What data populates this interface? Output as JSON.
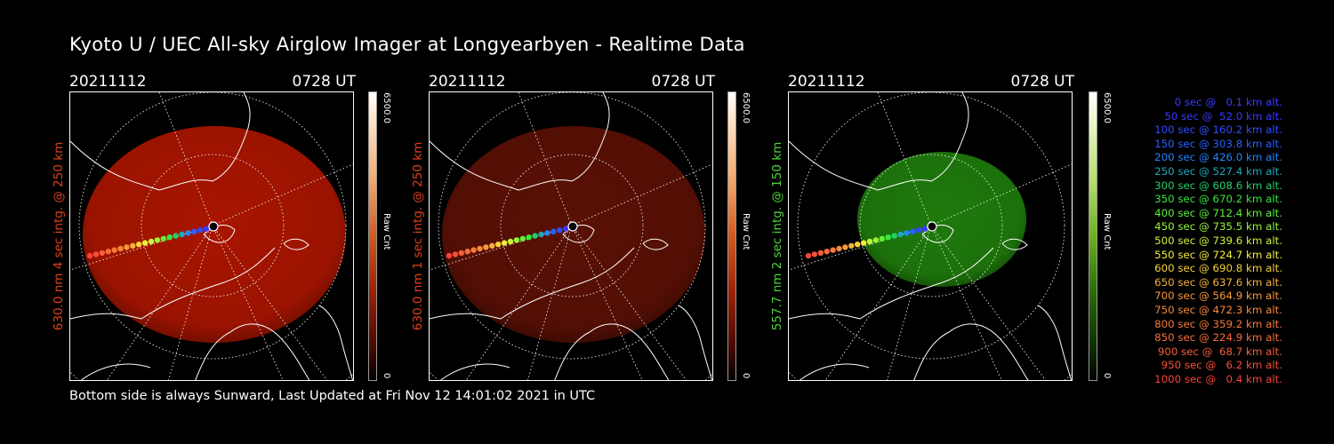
{
  "title": "Kyoto U / UEC All-sky Airglow Imager at Longyearbyen - Realtime Data",
  "footer": "Bottom side is always Sunward, Last Updated at Fri Nov 12 14:01:02 2021 in UTC",
  "panels": [
    {
      "date": "20211112",
      "time": "0728 UT",
      "label": "630.0 nm 4 sec intg. @ 250 km",
      "label_color": "#e0401a",
      "cbar_max": "6500.0",
      "cbar_min": "0",
      "cbar_unit": "Raw Cnt",
      "image_color": "#a81500"
    },
    {
      "date": "20211112",
      "time": "0728 UT",
      "label": "630.0 nm 1 sec intg. @ 250 km",
      "label_color": "#e0401a",
      "cbar_max": "6500.0",
      "cbar_min": "0",
      "cbar_unit": "Raw Cnt",
      "image_color": "#5a1005"
    },
    {
      "date": "20211112",
      "time": "0728 UT",
      "label": "557.7 nm 2 sec intg. @ 150 km",
      "label_color": "#4ed63a",
      "cbar_max": "6500.0",
      "cbar_min": "0",
      "cbar_unit": "Raw Cnt",
      "image_color": "#1f7a0c"
    }
  ],
  "legend": [
    {
      "text": "0 sec @   0.1 km alt.",
      "color": "#3a3aff"
    },
    {
      "text": "50 sec @  52.0 km alt.",
      "color": "#3a3aff"
    },
    {
      "text": "100 sec @ 160.2 km alt.",
      "color": "#2f4cff"
    },
    {
      "text": "150 sec @ 303.8 km alt.",
      "color": "#2a60ff"
    },
    {
      "text": "200 sec @ 426.0 km alt.",
      "color": "#1f88ff"
    },
    {
      "text": "250 sec @ 527.4 km alt.",
      "color": "#1fa8b8"
    },
    {
      "text": "300 sec @ 608.6 km alt.",
      "color": "#22d06a"
    },
    {
      "text": "350 sec @ 670.2 km alt.",
      "color": "#33e83a"
    },
    {
      "text": "400 sec @ 712.4 km alt.",
      "color": "#5ef23a"
    },
    {
      "text": "450 sec @ 735.5 km alt.",
      "color": "#96f53a"
    },
    {
      "text": "500 sec @ 739.6 km alt.",
      "color": "#c8f43a"
    },
    {
      "text": "550 sec @ 724.7 km alt.",
      "color": "#f2ee3a"
    },
    {
      "text": "600 sec @ 690.8 km alt.",
      "color": "#f6d23a"
    },
    {
      "text": "650 sec @ 637.6 km alt.",
      "color": "#f6b23a"
    },
    {
      "text": "700 sec @ 564.9 km alt.",
      "color": "#f6983a"
    },
    {
      "text": "750 sec @ 472.3 km alt.",
      "color": "#f6883a"
    },
    {
      "text": "800 sec @ 359.2 km alt.",
      "color": "#f67a3a"
    },
    {
      "text": "850 sec @ 224.9 km alt.",
      "color": "#f66c3a"
    },
    {
      "text": "900 sec @  68.7 km alt.",
      "color": "#f65e3a"
    },
    {
      "text": "950 sec @   6.2 km alt.",
      "color": "#f6503a"
    },
    {
      "text": "1000 sec @   0.4 km alt.",
      "color": "#f6423a"
    }
  ]
}
